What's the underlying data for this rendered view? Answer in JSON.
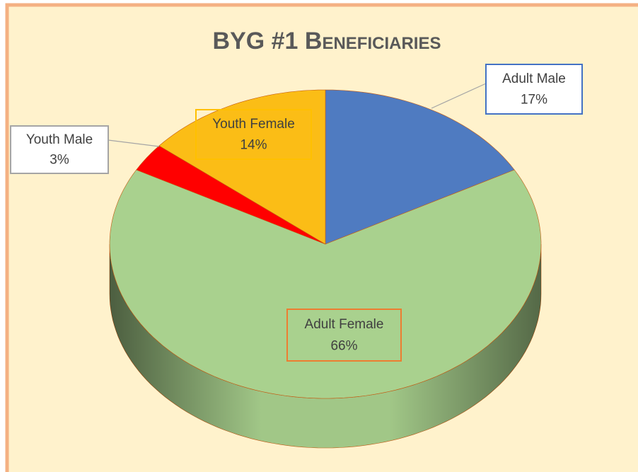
{
  "chart_data": {
    "type": "pie3d",
    "title": "BYG #1 Beneficiaries",
    "categories": [
      "Adult Male",
      "Adult Female",
      "Youth Male",
      "Youth Female"
    ],
    "values": [
      17,
      66,
      3,
      14
    ],
    "value_labels": [
      "17%",
      "66%",
      "3%",
      "14%"
    ],
    "colors": [
      "#4f7bc1",
      "#a9d18e",
      "#ff0000",
      "#fbbd16"
    ]
  }
}
